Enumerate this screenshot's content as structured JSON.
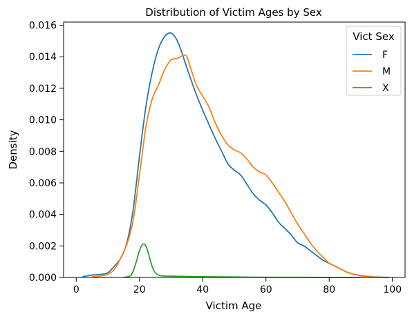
{
  "chart_data": {
    "type": "line",
    "title": "Distribution of Victim Ages by Sex",
    "xlabel": "Victim Age",
    "ylabel": "Density",
    "xlim": [
      -4,
      104
    ],
    "ylim": [
      0,
      0.0162
    ],
    "xticks": [
      0,
      20,
      40,
      60,
      80,
      100
    ],
    "yticks": [
      0.0,
      0.002,
      0.004,
      0.006,
      0.008,
      0.01,
      0.012,
      0.014,
      0.016
    ],
    "xtick_labels": [
      "0",
      "20",
      "40",
      "60",
      "80",
      "100"
    ],
    "ytick_labels": [
      "0.000",
      "0.002",
      "0.004",
      "0.006",
      "0.008",
      "0.010",
      "0.012",
      "0.014",
      "0.016"
    ],
    "grid": false,
    "legend": {
      "title": "Vict Sex",
      "placement": "top-right"
    },
    "series": [
      {
        "name": "F",
        "color": "#1f77b4",
        "x": [
          2,
          5,
          8,
          10,
          12,
          14,
          16,
          18,
          20,
          22,
          24,
          26,
          28,
          30,
          32,
          34,
          36,
          38,
          40,
          42,
          44,
          46,
          48,
          50,
          52,
          54,
          56,
          58,
          60,
          62,
          64,
          66,
          68,
          70,
          72,
          74,
          76,
          78,
          80,
          82,
          84,
          86,
          88,
          90,
          92,
          94,
          96,
          99
        ],
        "y": [
          5e-05,
          0.00015,
          0.0002,
          0.0003,
          0.0007,
          0.0012,
          0.0022,
          0.0043,
          0.0077,
          0.0108,
          0.013,
          0.0145,
          0.0153,
          0.0155,
          0.015,
          0.0139,
          0.0127,
          0.0116,
          0.0106,
          0.0097,
          0.0088,
          0.008,
          0.0072,
          0.0068,
          0.0065,
          0.0059,
          0.0053,
          0.0049,
          0.0046,
          0.0041,
          0.0035,
          0.0031,
          0.0027,
          0.0022,
          0.002,
          0.0017,
          0.0014,
          0.0011,
          0.0009,
          0.0007,
          0.0005,
          0.0003,
          0.0002,
          0.00012,
          7e-05,
          4e-05,
          2e-05,
          0.0
        ]
      },
      {
        "name": "M",
        "color": "#ff7f0e",
        "x": [
          5,
          8,
          10,
          12,
          14,
          16,
          18,
          20,
          22,
          24,
          26,
          28,
          30,
          32,
          34,
          35,
          36,
          38,
          40,
          42,
          44,
          46,
          48,
          50,
          52,
          54,
          56,
          58,
          60,
          62,
          64,
          66,
          68,
          70,
          72,
          74,
          76,
          78,
          80,
          82,
          84,
          86,
          88,
          90,
          92,
          94,
          96,
          99
        ],
        "y": [
          5e-05,
          0.0001,
          0.0002,
          0.0005,
          0.0012,
          0.0021,
          0.0036,
          0.0065,
          0.0095,
          0.0113,
          0.0122,
          0.0132,
          0.0138,
          0.0139,
          0.0141,
          0.014,
          0.0134,
          0.0122,
          0.0115,
          0.0108,
          0.0098,
          0.009,
          0.0084,
          0.0081,
          0.0079,
          0.0075,
          0.007,
          0.0067,
          0.0065,
          0.006,
          0.0054,
          0.0048,
          0.0041,
          0.0034,
          0.0028,
          0.0022,
          0.0017,
          0.0013,
          0.0009,
          0.0007,
          0.0005,
          0.0003,
          0.0002,
          0.0001,
          5e-05,
          3e-05,
          1e-05,
          0.0
        ]
      },
      {
        "name": "X",
        "color": "#2ca02c",
        "x": [
          15,
          17,
          18,
          19,
          20,
          21,
          22,
          23,
          24,
          25,
          26,
          27,
          30,
          40,
          50,
          60,
          70,
          80,
          90
        ],
        "y": [
          0.0,
          0.0001,
          0.0004,
          0.001,
          0.0017,
          0.0021,
          0.002,
          0.0014,
          0.0007,
          0.0003,
          0.00015,
          0.0001,
          8e-05,
          5e-05,
          3e-05,
          1e-05,
          1e-05,
          0.0,
          0.0
        ]
      }
    ]
  }
}
